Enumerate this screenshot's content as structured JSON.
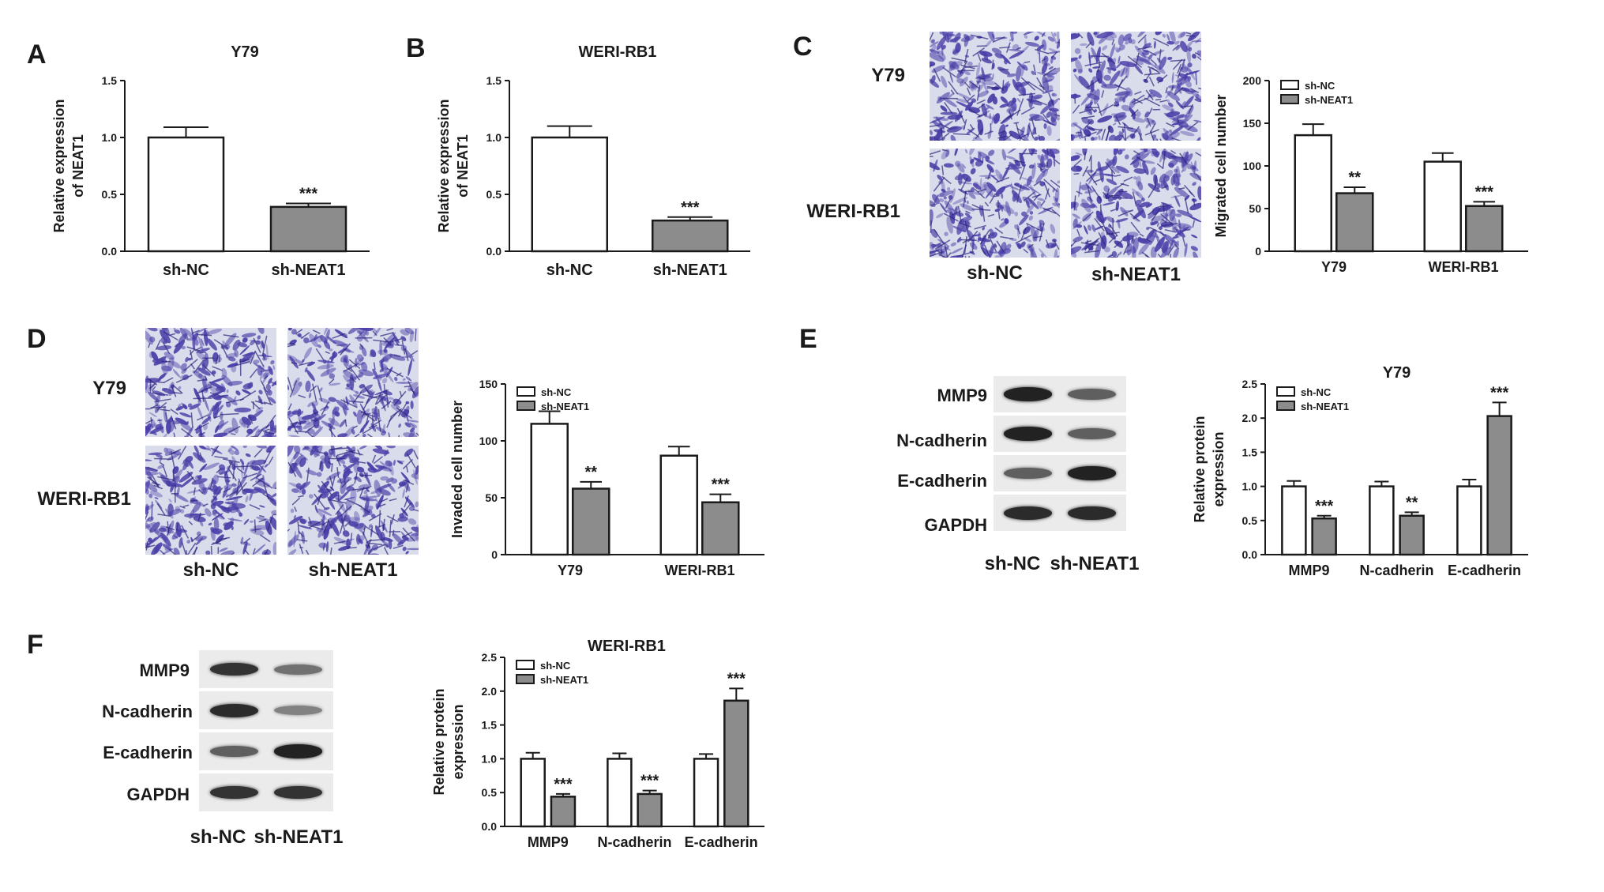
{
  "panels": {
    "A": "A",
    "B": "B",
    "C": "C",
    "D": "D",
    "E": "E",
    "F": "F"
  },
  "micrographs": {
    "C": {
      "rows": [
        "Y79",
        "WERI-RB1"
      ],
      "columns": [
        "sh-NC",
        "sh-NEAT1"
      ]
    },
    "D": {
      "rows": [
        "Y79",
        "WERI-RB1"
      ],
      "columns": [
        "sh-NC",
        "sh-NEAT1"
      ]
    }
  },
  "blots": {
    "E": {
      "rows": [
        "MMP9",
        "N-cadherin",
        "E-cadherin",
        "GAPDH"
      ],
      "columns": [
        "sh-NC",
        "sh-NEAT1"
      ],
      "intensity": [
        [
          0.95,
          0.6
        ],
        [
          0.95,
          0.6
        ],
        [
          0.6,
          0.95
        ],
        [
          0.9,
          0.9
        ]
      ]
    },
    "F": {
      "rows": [
        "MMP9",
        "N-cadherin",
        "E-cadherin",
        "GAPDH"
      ],
      "columns": [
        "sh-NC",
        "sh-NEAT1"
      ],
      "intensity": [
        [
          0.85,
          0.5
        ],
        [
          0.9,
          0.4
        ],
        [
          0.6,
          0.95
        ],
        [
          0.85,
          0.85
        ]
      ]
    }
  },
  "colors": {
    "sh_NC": "#ffffff",
    "sh_NEAT1": "#8c8c8c",
    "stain": "#4a3fa8",
    "axis": "#1a1a1a"
  },
  "chart_data": [
    {
      "id": "A",
      "type": "bar",
      "title": "Y79",
      "ylabel_lines": [
        "Relative expression",
        "of NEAT1"
      ],
      "categories": [
        "sh-NC",
        "sh-NEAT1"
      ],
      "values": [
        1.0,
        0.39
      ],
      "errors": [
        0.09,
        0.03
      ],
      "fills": [
        "#ffffff",
        "#8c8c8c"
      ],
      "annotations": [
        "",
        "***"
      ],
      "ylim": [
        0,
        1.5
      ],
      "yticks": [
        "0.0",
        "0.5",
        "1.0",
        "1.5"
      ]
    },
    {
      "id": "B",
      "type": "bar",
      "title": "WERI-RB1",
      "ylabel_lines": [
        "Relative expression",
        "of NEAT1"
      ],
      "categories": [
        "sh-NC",
        "sh-NEAT1"
      ],
      "values": [
        1.0,
        0.27
      ],
      "errors": [
        0.1,
        0.03
      ],
      "fills": [
        "#ffffff",
        "#8c8c8c"
      ],
      "annotations": [
        "",
        "***"
      ],
      "ylim": [
        0,
        1.5
      ],
      "yticks": [
        "0.0",
        "0.5",
        "1.0",
        "1.5"
      ]
    },
    {
      "id": "C",
      "type": "bar",
      "title": "",
      "ylabel_lines": [
        "Migrated cell number"
      ],
      "categories": [
        "Y79",
        "WERI-RB1"
      ],
      "series": [
        {
          "name": "sh-NC",
          "values": [
            136,
            105
          ],
          "errors": [
            13,
            10
          ],
          "annotations": [
            "",
            ""
          ]
        },
        {
          "name": "sh-NEAT1",
          "values": [
            68,
            53
          ],
          "errors": [
            7,
            5
          ],
          "annotations": [
            "**",
            "***"
          ]
        }
      ],
      "ylim": [
        0,
        200
      ],
      "yticks": [
        "0",
        "50",
        "100",
        "150",
        "200"
      ],
      "legend": "top-left"
    },
    {
      "id": "D",
      "type": "bar",
      "title": "",
      "ylabel_lines": [
        "Invaded cell number"
      ],
      "categories": [
        "Y79",
        "WERI-RB1"
      ],
      "series": [
        {
          "name": "sh-NC",
          "values": [
            115,
            87
          ],
          "errors": [
            11,
            8
          ],
          "annotations": [
            "",
            ""
          ]
        },
        {
          "name": "sh-NEAT1",
          "values": [
            58,
            46
          ],
          "errors": [
            6,
            7
          ],
          "annotations": [
            "**",
            "***"
          ]
        }
      ],
      "ylim": [
        0,
        150
      ],
      "yticks": [
        "0",
        "50",
        "100",
        "150"
      ],
      "legend": "top-left"
    },
    {
      "id": "E",
      "type": "bar",
      "title": "Y79",
      "ylabel_lines": [
        "Relative protein",
        "expression"
      ],
      "categories": [
        "MMP9",
        "N-cadherin",
        "E-cadherin"
      ],
      "series": [
        {
          "name": "sh-NC",
          "values": [
            1.0,
            1.0,
            1.0
          ],
          "errors": [
            0.08,
            0.07,
            0.1
          ],
          "annotations": [
            "",
            "",
            ""
          ]
        },
        {
          "name": "sh-NEAT1",
          "values": [
            0.53,
            0.57,
            2.03
          ],
          "errors": [
            0.04,
            0.05,
            0.2
          ],
          "annotations": [
            "***",
            "**",
            "***"
          ]
        }
      ],
      "ylim": [
        0,
        2.5
      ],
      "yticks": [
        "0.0",
        "0.5",
        "1.0",
        "1.5",
        "2.0",
        "2.5"
      ],
      "legend": "top-left"
    },
    {
      "id": "F",
      "type": "bar",
      "title": "WERI-RB1",
      "ylabel_lines": [
        "Relative protein",
        "expression"
      ],
      "categories": [
        "MMP9",
        "N-cadherin",
        "E-cadherin"
      ],
      "series": [
        {
          "name": "sh-NC",
          "values": [
            1.0,
            1.0,
            1.0
          ],
          "errors": [
            0.09,
            0.08,
            0.07
          ],
          "annotations": [
            "",
            "",
            ""
          ]
        },
        {
          "name": "sh-NEAT1",
          "values": [
            0.44,
            0.48,
            1.86
          ],
          "errors": [
            0.04,
            0.05,
            0.18
          ],
          "annotations": [
            "***",
            "***",
            "***"
          ]
        }
      ],
      "ylim": [
        0,
        2.5
      ],
      "yticks": [
        "0.0",
        "0.5",
        "1.0",
        "1.5",
        "2.0",
        "2.5"
      ],
      "legend": "top-left"
    }
  ]
}
